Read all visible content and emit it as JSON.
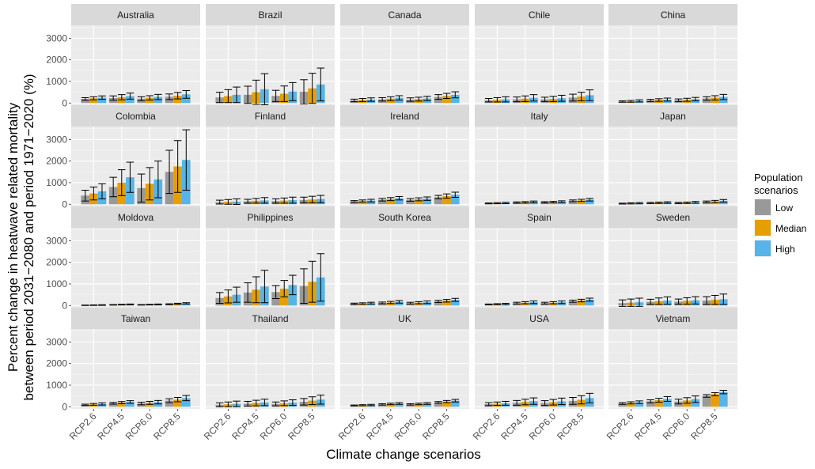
{
  "chart_data": {
    "type": "bar",
    "facets": [
      "Australia",
      "Brazil",
      "Canada",
      "Chile",
      "China",
      "Colombia",
      "Finland",
      "Ireland",
      "Italy",
      "Japan",
      "Moldova",
      "Philippines",
      "South Korea",
      "Spain",
      "Sweden",
      "Taiwan",
      "Thailand",
      "UK",
      "USA",
      "Vietnam"
    ],
    "categories": [
      "RCP2.6",
      "RCP4.5",
      "RCP6.0",
      "RCP8.5"
    ],
    "series_names": [
      "Low",
      "Median",
      "High"
    ],
    "colors": {
      "Low": "#999999",
      "Median": "#E69F00",
      "High": "#56B4E9"
    },
    "xlabel": "Climate change scenarios",
    "ylabel_line1": "Percent change in heatwave related mortality",
    "ylabel_line2": "between period 2031−2080 and period 1971−2020 (%)",
    "ylim": [
      -100,
      3600
    ],
    "yticks": [
      0,
      1000,
      2000,
      3000
    ],
    "legend": {
      "title_line1": "Population",
      "title_line2": "scenarios",
      "position": "right"
    },
    "grid": true,
    "data": {
      "Australia": {
        "values": [
          [
            190,
            220,
            250
          ],
          [
            230,
            270,
            320
          ],
          [
            200,
            240,
            280
          ],
          [
            290,
            340,
            400
          ]
        ],
        "errors": [
          [
            60,
            70,
            80
          ],
          [
            100,
            120,
            140
          ],
          [
            90,
            100,
            120
          ],
          [
            130,
            150,
            180
          ]
        ]
      },
      "Brazil": {
        "values": [
          [
            260,
            320,
            380
          ],
          [
            380,
            500,
            640
          ],
          [
            330,
            430,
            530
          ],
          [
            520,
            680,
            860
          ]
        ],
        "errors": [
          [
            240,
            300,
            360
          ],
          [
            400,
            560,
            720
          ],
          [
            260,
            360,
            420
          ],
          [
            560,
            700,
            760
          ]
        ]
      },
      "Canada": {
        "values": [
          [
            120,
            140,
            160
          ],
          [
            170,
            200,
            240
          ],
          [
            160,
            180,
            210
          ],
          [
            280,
            330,
            380
          ]
        ],
        "errors": [
          [
            60,
            70,
            80
          ],
          [
            80,
            90,
            100
          ],
          [
            80,
            90,
            100
          ],
          [
            110,
            120,
            140
          ]
        ]
      },
      "Chile": {
        "values": [
          [
            130,
            150,
            170
          ],
          [
            170,
            200,
            240
          ],
          [
            170,
            190,
            220
          ],
          [
            250,
            300,
            360
          ]
        ],
        "errors": [
          [
            80,
            100,
            120
          ],
          [
            110,
            130,
            150
          ],
          [
            100,
            120,
            140
          ],
          [
            160,
            200,
            250
          ]
        ]
      },
      "China": {
        "values": [
          [
            70,
            80,
            100
          ],
          [
            120,
            140,
            160
          ],
          [
            130,
            150,
            180
          ],
          [
            210,
            240,
            280
          ]
        ],
        "errors": [
          [
            30,
            40,
            50
          ],
          [
            50,
            60,
            70
          ],
          [
            60,
            70,
            80
          ],
          [
            80,
            100,
            120
          ]
        ]
      },
      "Colombia": {
        "values": [
          [
            400,
            500,
            600
          ],
          [
            800,
            1000,
            1250
          ],
          [
            750,
            950,
            1150
          ],
          [
            1500,
            1750,
            2050
          ]
        ],
        "errors": [
          [
            250,
            300,
            350
          ],
          [
            450,
            600,
            700
          ],
          [
            650,
            750,
            850
          ],
          [
            1000,
            1200,
            1400
          ]
        ]
      },
      "Finland": {
        "values": [
          [
            100,
            110,
            120
          ],
          [
            140,
            160,
            180
          ],
          [
            150,
            170,
            190
          ],
          [
            200,
            220,
            240
          ]
        ],
        "errors": [
          [
            90,
            110,
            130
          ],
          [
            90,
            110,
            130
          ],
          [
            100,
            120,
            140
          ],
          [
            130,
            150,
            170
          ]
        ]
      },
      "Ireland": {
        "values": [
          [
            130,
            150,
            170
          ],
          [
            210,
            240,
            280
          ],
          [
            200,
            230,
            260
          ],
          [
            330,
            380,
            440
          ]
        ],
        "errors": [
          [
            40,
            50,
            60
          ],
          [
            60,
            70,
            80
          ],
          [
            60,
            70,
            80
          ],
          [
            80,
            100,
            120
          ]
        ]
      },
      "Italy": {
        "values": [
          [
            40,
            50,
            60
          ],
          [
            80,
            90,
            110
          ],
          [
            90,
            100,
            120
          ],
          [
            160,
            180,
            210
          ]
        ],
        "errors": [
          [
            20,
            25,
            30
          ],
          [
            30,
            35,
            40
          ],
          [
            30,
            35,
            40
          ],
          [
            40,
            50,
            60
          ]
        ]
      },
      "Japan": {
        "values": [
          [
            30,
            40,
            50
          ],
          [
            60,
            70,
            80
          ],
          [
            60,
            70,
            90
          ],
          [
            110,
            130,
            160
          ]
        ],
        "errors": [
          [
            20,
            25,
            30
          ],
          [
            25,
            30,
            35
          ],
          [
            25,
            30,
            40
          ],
          [
            40,
            50,
            60
          ]
        ]
      },
      "Moldova": {
        "values": [
          [
            10,
            15,
            20
          ],
          [
            30,
            40,
            50
          ],
          [
            30,
            40,
            50
          ],
          [
            60,
            80,
            100
          ]
        ],
        "errors": [
          [
            10,
            12,
            15
          ],
          [
            12,
            15,
            20
          ],
          [
            12,
            15,
            20
          ],
          [
            20,
            25,
            30
          ]
        ]
      },
      "Philippines": {
        "values": [
          [
            350,
            420,
            500
          ],
          [
            600,
            730,
            880
          ],
          [
            620,
            780,
            950
          ],
          [
            900,
            1100,
            1300
          ]
        ],
        "errors": [
          [
            250,
            300,
            350
          ],
          [
            450,
            600,
            750
          ],
          [
            300,
            380,
            450
          ],
          [
            800,
            950,
            1100
          ]
        ]
      },
      "South Korea": {
        "values": [
          [
            80,
            90,
            110
          ],
          [
            120,
            140,
            170
          ],
          [
            110,
            130,
            150
          ],
          [
            190,
            220,
            260
          ]
        ],
        "errors": [
          [
            30,
            35,
            40
          ],
          [
            40,
            50,
            60
          ],
          [
            40,
            50,
            60
          ],
          [
            50,
            60,
            70
          ]
        ]
      },
      "Spain": {
        "values": [
          [
            50,
            60,
            70
          ],
          [
            110,
            130,
            150
          ],
          [
            110,
            130,
            150
          ],
          [
            200,
            230,
            270
          ]
        ],
        "errors": [
          [
            20,
            25,
            30
          ],
          [
            40,
            50,
            60
          ],
          [
            40,
            50,
            60
          ],
          [
            50,
            60,
            70
          ]
        ]
      },
      "Sweden": {
        "values": [
          [
            110,
            130,
            150
          ],
          [
            170,
            200,
            230
          ],
          [
            180,
            210,
            240
          ],
          [
            230,
            260,
            290
          ]
        ],
        "errors": [
          [
            150,
            170,
            190
          ],
          [
            120,
            150,
            170
          ],
          [
            120,
            150,
            170
          ],
          [
            180,
            210,
            240
          ]
        ]
      },
      "Taiwan": {
        "values": [
          [
            90,
            110,
            130
          ],
          [
            160,
            190,
            220
          ],
          [
            150,
            180,
            210
          ],
          [
            280,
            330,
            400
          ]
        ],
        "errors": [
          [
            30,
            40,
            50
          ],
          [
            40,
            50,
            60
          ],
          [
            60,
            70,
            80
          ],
          [
            90,
            100,
            120
          ]
        ]
      },
      "Thailand": {
        "values": [
          [
            90,
            110,
            130
          ],
          [
            140,
            170,
            200
          ],
          [
            130,
            160,
            190
          ],
          [
            230,
            280,
            330
          ]
        ],
        "errors": [
          [
            90,
            110,
            130
          ],
          [
            110,
            130,
            150
          ],
          [
            90,
            110,
            130
          ],
          [
            150,
            180,
            210
          ]
        ]
      },
      "UK": {
        "values": [
          [
            60,
            70,
            80
          ],
          [
            110,
            130,
            150
          ],
          [
            110,
            130,
            150
          ],
          [
            200,
            240,
            280
          ]
        ],
        "errors": [
          [
            20,
            25,
            30
          ],
          [
            30,
            35,
            40
          ],
          [
            30,
            35,
            40
          ],
          [
            40,
            50,
            60
          ]
        ]
      },
      "USA": {
        "values": [
          [
            120,
            140,
            160
          ],
          [
            180,
            220,
            260
          ],
          [
            170,
            210,
            250
          ],
          [
            270,
            320,
            400
          ]
        ],
        "errors": [
          [
            70,
            80,
            90
          ],
          [
            110,
            130,
            150
          ],
          [
            110,
            130,
            150
          ],
          [
            160,
            190,
            220
          ]
        ]
      },
      "Vietnam": {
        "values": [
          [
            150,
            180,
            210
          ],
          [
            250,
            300,
            360
          ],
          [
            240,
            290,
            350
          ],
          [
            500,
            580,
            680
          ]
        ],
        "errors": [
          [
            40,
            50,
            60
          ],
          [
            70,
            90,
            110
          ],
          [
            110,
            130,
            150
          ],
          [
            60,
            70,
            80
          ]
        ]
      }
    }
  }
}
